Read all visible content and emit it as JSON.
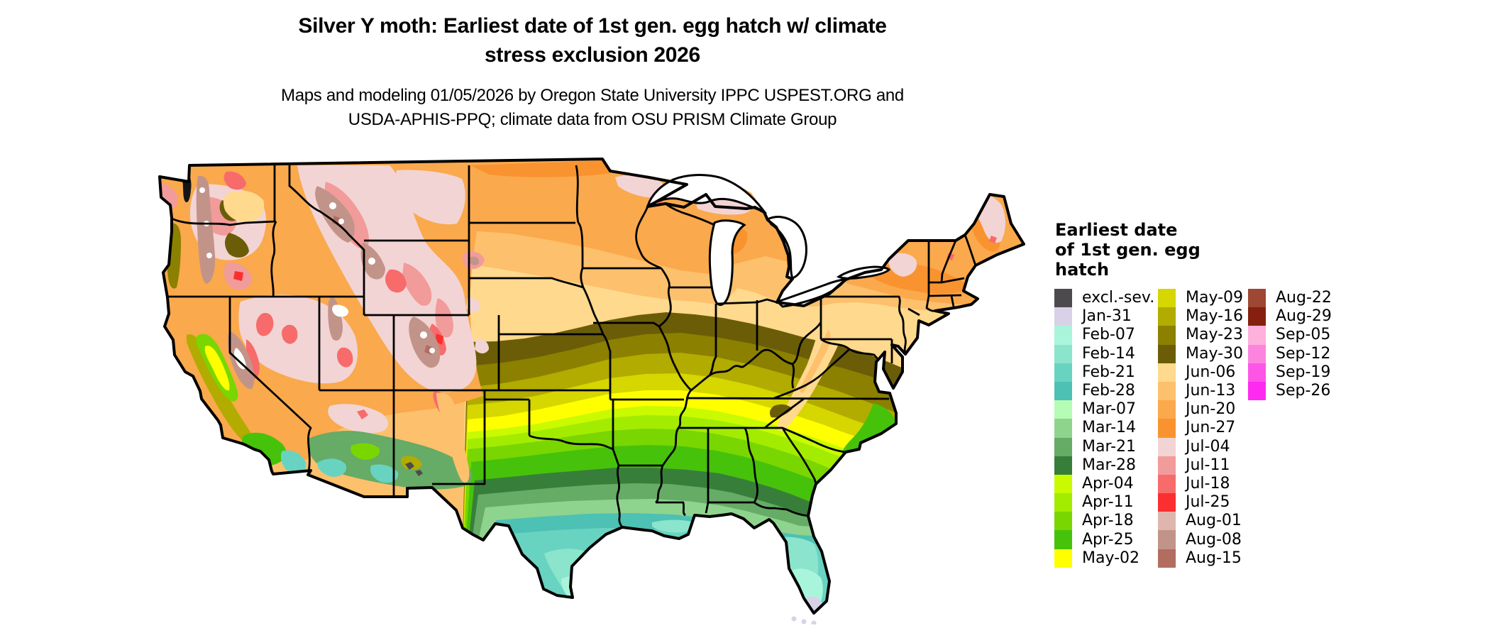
{
  "title": {
    "line1": "Silver Y moth: Earliest date of 1st gen. egg hatch w/ climate",
    "line2": "stress exclusion 2026"
  },
  "subtitle": {
    "line1": "Maps and modeling 01/05/2026 by Oregon State University IPPC USPEST.ORG and",
    "line2": "USDA-APHIS-PPQ; climate data from OSU PRISM Climate Group"
  },
  "legend": {
    "title_lines": [
      "Earliest date",
      "of 1st gen. egg",
      "hatch"
    ],
    "columns": [
      [
        {
          "label": "excl.-sev.",
          "color": "#4D4A4D"
        },
        {
          "label": "Jan-31",
          "color": "#D9D1E8"
        },
        {
          "label": "Feb-07",
          "color": "#A9F5DC"
        },
        {
          "label": "Feb-14",
          "color": "#8BE4CC"
        },
        {
          "label": "Feb-21",
          "color": "#69D3C2"
        },
        {
          "label": "Feb-28",
          "color": "#4DC1B3"
        },
        {
          "label": "Mar-07",
          "color": "#B5FCB5"
        },
        {
          "label": "Mar-14",
          "color": "#8ED48E"
        },
        {
          "label": "Mar-21",
          "color": "#66AB66"
        },
        {
          "label": "Mar-28",
          "color": "#387E3B"
        },
        {
          "label": "Apr-04",
          "color": "#C9FA00"
        },
        {
          "label": "Apr-11",
          "color": "#A3EC00"
        },
        {
          "label": "Apr-18",
          "color": "#79D600"
        },
        {
          "label": "Apr-25",
          "color": "#47C20A"
        },
        {
          "label": "May-02",
          "color": "#FFFF00"
        }
      ],
      [
        {
          "label": "May-09",
          "color": "#D6D600"
        },
        {
          "label": "May-16",
          "color": "#B2AB00"
        },
        {
          "label": "May-23",
          "color": "#8B8000"
        },
        {
          "label": "May-30",
          "color": "#6B5D07"
        },
        {
          "label": "Jun-06",
          "color": "#FFD98E"
        },
        {
          "label": "Jun-13",
          "color": "#FDC06C"
        },
        {
          "label": "Jun-20",
          "color": "#FAA94C"
        },
        {
          "label": "Jun-27",
          "color": "#F9932F"
        },
        {
          "label": "Jul-04",
          "color": "#F2D4D4"
        },
        {
          "label": "Jul-11",
          "color": "#F29B9B"
        },
        {
          "label": "Jul-18",
          "color": "#F76B6B"
        },
        {
          "label": "Jul-25",
          "color": "#FB2F2F"
        },
        {
          "label": "Aug-01",
          "color": "#DEB6AE"
        },
        {
          "label": "Aug-08",
          "color": "#C29489"
        },
        {
          "label": "Aug-15",
          "color": "#B36D60"
        }
      ],
      [
        {
          "label": "Aug-22",
          "color": "#9E4733"
        },
        {
          "label": "Aug-29",
          "color": "#85200E"
        },
        {
          "label": "Sep-05",
          "color": "#FFB0DC"
        },
        {
          "label": "Sep-12",
          "color": "#FC84DE"
        },
        {
          "label": "Sep-19",
          "color": "#FD56E7"
        },
        {
          "label": "Sep-26",
          "color": "#FF2AF2"
        }
      ]
    ]
  },
  "map_colors": {
    "gray": "#4D4A4D",
    "jan31": "#D9D1E8",
    "feb07": "#A9F5DC",
    "feb14": "#8BE4CC",
    "feb21": "#69D3C2",
    "feb28": "#4DC1B3",
    "mar07": "#B5FCB5",
    "mar14": "#8ED48E",
    "mar21": "#66AB66",
    "mar28": "#387E3B",
    "apr04": "#C9FA00",
    "apr11": "#A3EC00",
    "apr18": "#79D600",
    "apr25": "#47C20A",
    "may02": "#FFFF00",
    "may09": "#D6D600",
    "may16": "#B2AB00",
    "may23": "#8B8000",
    "may30": "#6B5D07",
    "jun06": "#FFD98E",
    "jun13": "#FDC06C",
    "jun20": "#FAA94C",
    "jun27": "#F9932F",
    "jul04": "#F2D4D4",
    "jul11": "#F29B9B",
    "jul18": "#F76B6B",
    "jul25": "#FB2F2F",
    "aug01": "#DEB6AE",
    "aug08": "#C29489",
    "aug15": "#B36D60",
    "white": "#FFFFFF",
    "water": "#151515"
  }
}
